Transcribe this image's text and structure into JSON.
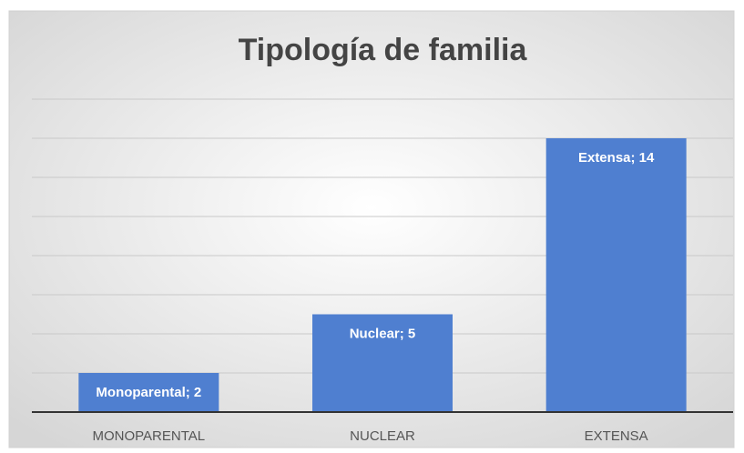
{
  "chart_data": {
    "type": "bar",
    "title": "Tipología de familia",
    "categories": [
      "MONOPARENTAL",
      "NUCLEAR",
      "EXTENSA"
    ],
    "values": [
      2,
      5,
      14
    ],
    "value_labels": [
      "Monoparental; 2",
      "Nuclear; 5",
      "Extensa; 14"
    ],
    "color": "#4f7fd0",
    "ylim": [
      0,
      16
    ],
    "yticks": [
      0,
      2,
      4,
      6,
      8,
      10,
      12,
      14,
      16
    ],
    "grid": true
  }
}
